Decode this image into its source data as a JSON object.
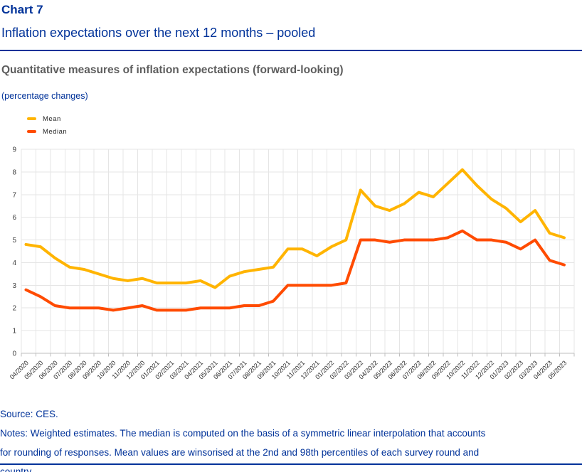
{
  "header": {
    "chart_label": "Chart 7",
    "title": "Inflation expectations over the next 12 months – pooled",
    "subtitle": "Quantitative measures of inflation expectations (forward-looking)",
    "unit_label": "(percentage changes)"
  },
  "colors": {
    "accent_blue": "#003299",
    "mean_line": "#FFB400",
    "median_line": "#FF4B00",
    "grid": "#E5E5E5",
    "axis": "#BFBFBF",
    "tick_text": "#2b2b2b"
  },
  "chart_data": {
    "type": "line",
    "title": "",
    "xlabel": "",
    "ylabel": "",
    "ylim": [
      0,
      9
    ],
    "yticks": [
      0,
      1,
      2,
      3,
      4,
      5,
      6,
      7,
      8,
      9
    ],
    "grid": true,
    "legend_position": "top-left",
    "categories": [
      "04/2020",
      "05/2020",
      "06/2020",
      "07/2020",
      "08/2020",
      "09/2020",
      "10/2020",
      "11/2020",
      "12/2020",
      "01/2021",
      "02/2021",
      "03/2021",
      "04/2021",
      "05/2021",
      "06/2021",
      "07/2021",
      "08/2021",
      "09/2021",
      "10/2021",
      "11/2021",
      "12/2021",
      "01/2022",
      "02/2022",
      "03/2022",
      "04/2022",
      "05/2022",
      "06/2022",
      "07/2022",
      "08/2022",
      "09/2022",
      "10/2022",
      "11/2022",
      "12/2022",
      "01/2023",
      "02/2023",
      "03/2023",
      "04/2023",
      "05/2023"
    ],
    "series": [
      {
        "name": "Mean",
        "color": "#FFB400",
        "values": [
          4.8,
          4.7,
          4.2,
          3.8,
          3.7,
          3.5,
          3.3,
          3.2,
          3.3,
          3.1,
          3.1,
          3.1,
          3.2,
          2.9,
          3.4,
          3.6,
          3.7,
          3.8,
          4.6,
          4.6,
          4.3,
          4.7,
          5.0,
          7.2,
          6.5,
          6.3,
          6.6,
          7.1,
          6.9,
          7.5,
          8.1,
          7.4,
          6.8,
          6.4,
          5.8,
          6.3,
          5.3,
          5.1
        ]
      },
      {
        "name": "Median",
        "color": "#FF4B00",
        "values": [
          2.8,
          2.5,
          2.1,
          2.0,
          2.0,
          2.0,
          1.9,
          2.0,
          2.1,
          1.9,
          1.9,
          1.9,
          2.0,
          2.0,
          2.0,
          2.1,
          2.1,
          2.3,
          3.0,
          3.0,
          3.0,
          3.0,
          3.1,
          5.0,
          5.0,
          4.9,
          5.0,
          5.0,
          5.0,
          5.1,
          5.4,
          5.0,
          5.0,
          4.9,
          4.6,
          5.0,
          4.1,
          3.9
        ]
      }
    ]
  },
  "footer": {
    "source": "Source: CES.",
    "notes_lines": [
      "Notes: Weighted estimates. The median is computed on the basis of a symmetric linear interpolation that accounts",
      "for rounding of responses. Mean values are winsorised at the 2nd and 98th percentiles of each survey round and",
      "country."
    ]
  }
}
